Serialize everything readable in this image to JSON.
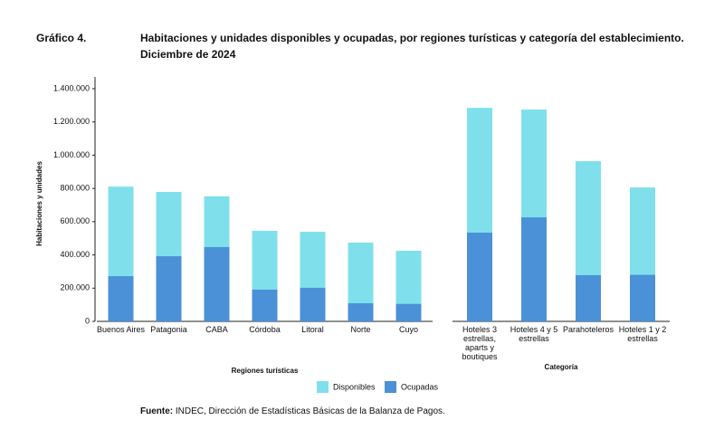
{
  "header": {
    "label": "Gráfico 4.",
    "title": "Habitaciones y unidades disponibles y ocupadas, por regiones turísticas y categoría del establecimiento.",
    "subtitle": "Diciembre de 2024"
  },
  "source": {
    "label": "Fuente:",
    "text": "INDEC, Dirección de Estadísticas Básicas de la Balanza de Pagos."
  },
  "chart_data": [
    {
      "type": "bar",
      "xlabel": "Regiones turísticas",
      "ylabel": "Habitaciones y unidades",
      "categories": [
        "Buenos Aires",
        "Patagonia",
        "CABA",
        "Córdoba",
        "Litoral",
        "Norte",
        "Cuyo"
      ],
      "series": [
        {
          "name": "Disponibles",
          "color": "#7fe0ec",
          "values": [
            811000,
            779000,
            752000,
            545000,
            539000,
            474000,
            425000
          ]
        },
        {
          "name": "Ocupadas",
          "color": "#4a91d8",
          "values": [
            272000,
            392000,
            447000,
            191000,
            202000,
            109000,
            105000
          ]
        }
      ],
      "ylim": [
        0,
        1400000
      ],
      "yticks": [
        0,
        {
          "value": 200000,
          "label": "200.000"
        },
        {
          "value": 400000,
          "label": "400.000"
        },
        {
          "value": 600000,
          "label": "600.000"
        },
        {
          "value": 800000,
          "label": "800.000"
        },
        {
          "value": 1000000,
          "label": "1.000.000"
        },
        {
          "value": 1200000,
          "label": "1.200.000"
        },
        {
          "value": 1400000,
          "label": "1.400.000"
        }
      ],
      "legend": "bottom"
    },
    {
      "type": "bar",
      "xlabel": "Categoría",
      "categories": [
        "Hoteles 3 estrellas, aparts y boutiques",
        "Hoteles 4 y 5 estrellas",
        "Parahoteleros",
        "Hoteles 1 y 2 estrellas"
      ],
      "series": [
        {
          "color": "#7fe0ec",
          "values": [
            1285000,
            1275000,
            964000,
            806000
          ]
        },
        {
          "color": "#4a91d8",
          "values": [
            534000,
            626000,
            278000,
            280000
          ]
        }
      ],
      "ylim": [
        0,
        1400000
      ]
    }
  ]
}
